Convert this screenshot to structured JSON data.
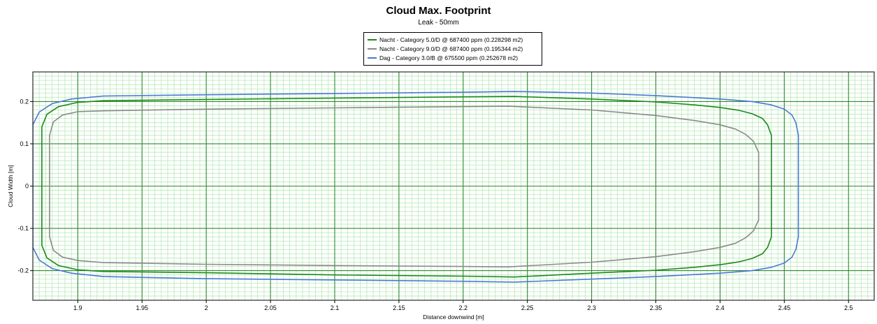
{
  "chart_data": {
    "type": "line",
    "title": "Cloud Max. Footprint",
    "subtitle": "Leak - 50mm",
    "xlabel": "Distance downwind [m]",
    "ylabel": "Cloud Width [m]",
    "xlim": [
      1.865,
      2.52
    ],
    "ylim": [
      -0.27,
      0.27
    ],
    "xticks": [
      1.9,
      1.95,
      2,
      2.05,
      2.1,
      2.15,
      2.2,
      2.25,
      2.3,
      2.35,
      2.4,
      2.45,
      2.5
    ],
    "xtick_labels": [
      "1.9",
      "1.95",
      "2",
      "2.05",
      "2.1",
      "2.15",
      "2.2",
      "2.25",
      "2.3",
      "2.35",
      "2.4",
      "2.45",
      "2.5"
    ],
    "yticks": [
      0.2,
      0.1,
      0,
      -0.1,
      -0.2
    ],
    "ytick_labels": [
      "0.2",
      "0.1",
      "0",
      "-0.1",
      "-0.2"
    ],
    "grid": true,
    "legend_position": "top-center",
    "series": [
      {
        "name": "Nacht - Category 5.0/D @ 687400 ppm (0.228298 m2)",
        "color": "#1a8a1a",
        "x": [
          1.92,
          2.0,
          2.1,
          2.2,
          2.24,
          2.3,
          2.35,
          2.38,
          2.4,
          2.415,
          2.425,
          2.433,
          2.437,
          2.44,
          2.44,
          2.44,
          2.437,
          2.433,
          2.425,
          2.415,
          2.4,
          2.38,
          2.35,
          2.3,
          2.24,
          2.2,
          2.1,
          2.0,
          1.92,
          1.9,
          1.885,
          1.876,
          1.872,
          1.872,
          1.872,
          1.876,
          1.885,
          1.9,
          1.92
        ],
        "y": [
          0.202,
          0.205,
          0.208,
          0.211,
          0.212,
          0.206,
          0.199,
          0.192,
          0.186,
          0.179,
          0.171,
          0.16,
          0.145,
          0.12,
          0,
          -0.12,
          -0.145,
          -0.16,
          -0.171,
          -0.179,
          -0.186,
          -0.192,
          -0.199,
          -0.206,
          -0.215,
          -0.213,
          -0.21,
          -0.205,
          -0.202,
          -0.198,
          -0.188,
          -0.17,
          -0.14,
          0,
          0.14,
          0.17,
          0.188,
          0.198,
          0.202
        ]
      },
      {
        "name": "Nacht - Category 9.0/D @ 687400 ppm (0.195344 m2)",
        "color": "#8a8a8a",
        "x": [
          1.92,
          2.0,
          2.1,
          2.2,
          2.235,
          2.3,
          2.35,
          2.38,
          2.4,
          2.412,
          2.42,
          2.426,
          2.43,
          2.43,
          2.43,
          2.426,
          2.42,
          2.412,
          2.4,
          2.38,
          2.35,
          2.3,
          2.235,
          2.2,
          2.1,
          2.0,
          1.92,
          1.9,
          1.888,
          1.881,
          1.878,
          1.878,
          1.878,
          1.881,
          1.888,
          1.9,
          1.92
        ],
        "y": [
          0.178,
          0.182,
          0.185,
          0.188,
          0.189,
          0.18,
          0.167,
          0.155,
          0.145,
          0.135,
          0.122,
          0.106,
          0.08,
          0,
          -0.08,
          -0.106,
          -0.122,
          -0.135,
          -0.145,
          -0.155,
          -0.167,
          -0.18,
          -0.191,
          -0.19,
          -0.188,
          -0.185,
          -0.181,
          -0.176,
          -0.168,
          -0.152,
          -0.12,
          0,
          0.12,
          0.152,
          0.168,
          0.176,
          0.178
        ]
      },
      {
        "name": "Dag - Category 3.0/B @ 675500 ppm (0.252678 m2)",
        "color": "#4a78d8",
        "x": [
          1.92,
          2.0,
          2.1,
          2.2,
          2.24,
          2.3,
          2.35,
          2.4,
          2.425,
          2.44,
          2.45,
          2.456,
          2.459,
          2.461,
          2.461,
          2.461,
          2.459,
          2.456,
          2.45,
          2.44,
          2.425,
          2.4,
          2.35,
          2.3,
          2.24,
          2.2,
          2.1,
          2.0,
          1.92,
          1.895,
          1.88,
          1.87,
          1.865,
          1.865,
          1.865,
          1.87,
          1.88,
          1.895,
          1.92
        ],
        "y": [
          0.213,
          0.216,
          0.219,
          0.222,
          0.224,
          0.22,
          0.214,
          0.206,
          0.2,
          0.192,
          0.182,
          0.168,
          0.15,
          0.12,
          0,
          -0.12,
          -0.15,
          -0.168,
          -0.182,
          -0.192,
          -0.2,
          -0.206,
          -0.214,
          -0.22,
          -0.227,
          -0.225,
          -0.222,
          -0.219,
          -0.214,
          -0.206,
          -0.195,
          -0.175,
          -0.145,
          0,
          0.145,
          0.175,
          0.195,
          0.206,
          0.213
        ]
      }
    ]
  }
}
